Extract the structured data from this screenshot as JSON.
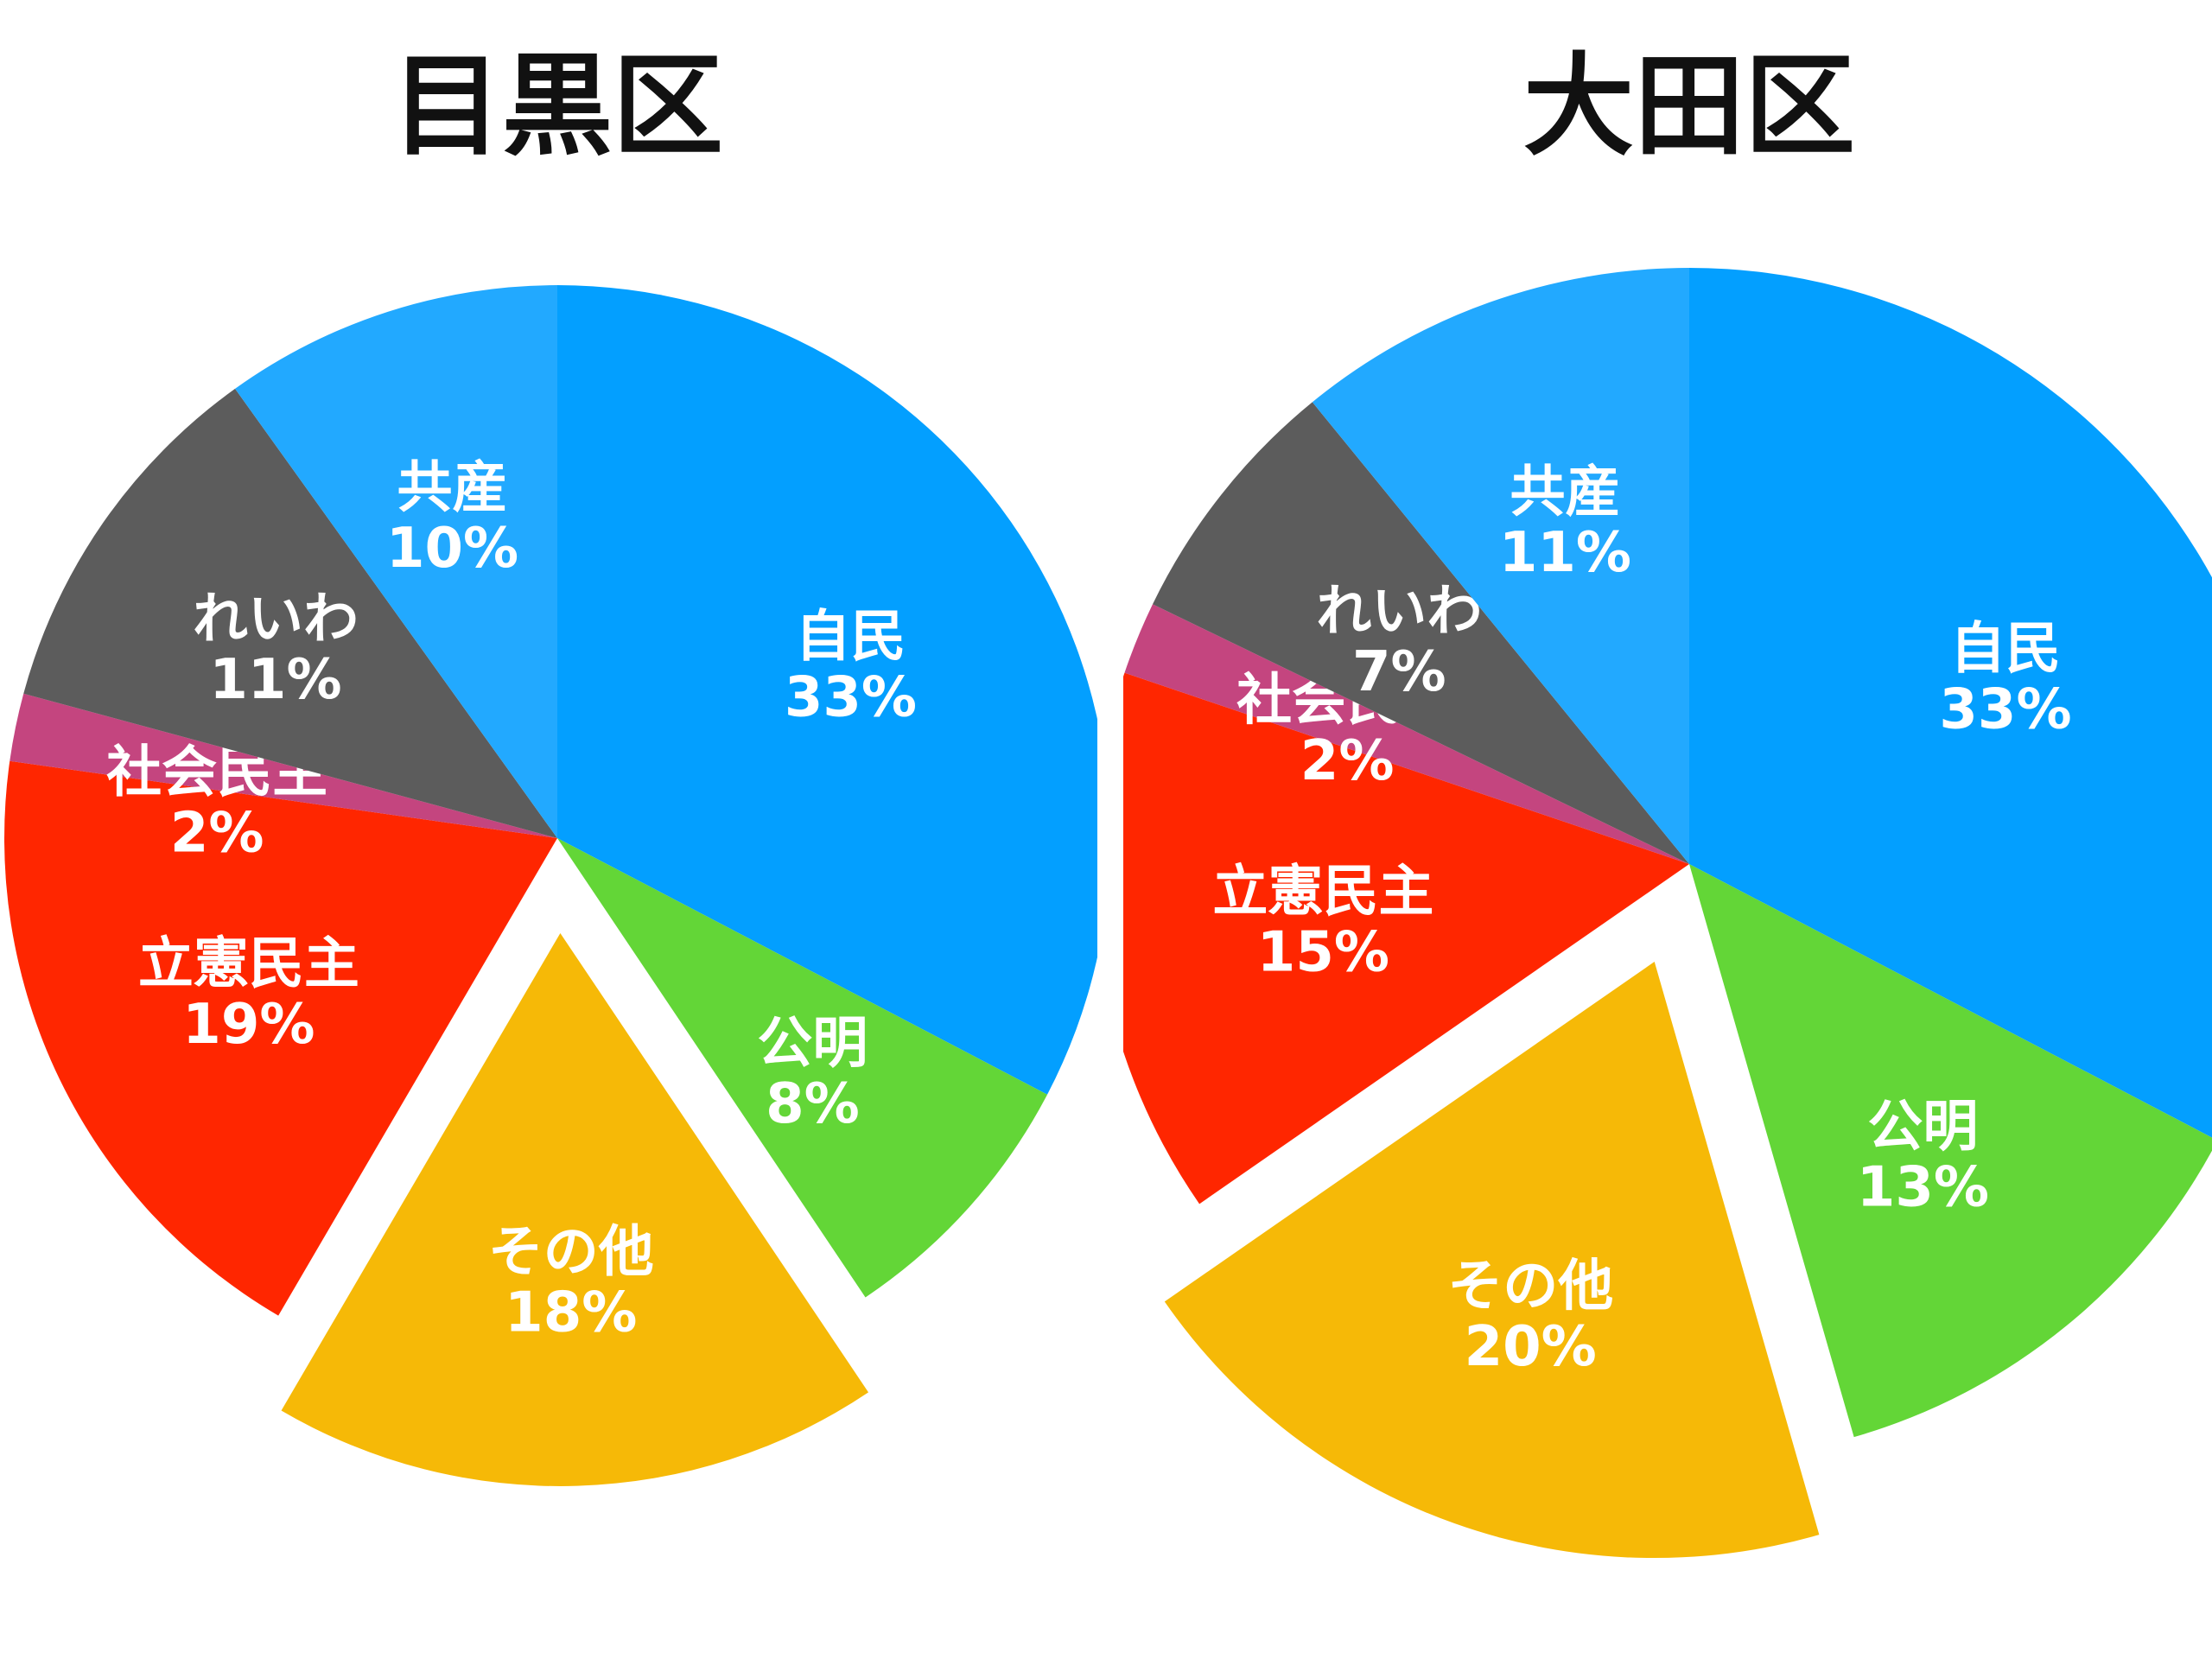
{
  "chart_data": [
    {
      "type": "pie",
      "title": "目黒区",
      "exploded": "その他",
      "start_angle_deg": -90,
      "slices": [
        {
          "name": "自民",
          "value": 33,
          "label": "33%",
          "color": "#039FFF"
        },
        {
          "name": "公明",
          "value": 8,
          "label": "8%",
          "color": "#63D637"
        },
        {
          "name": "その他",
          "value": 18,
          "label": "18%",
          "color": "#F6B907"
        },
        {
          "name": "立憲民主",
          "value": 19,
          "label": "19%",
          "color": "#FF2600"
        },
        {
          "name": "社会民主",
          "value": 2,
          "label": "2%",
          "color": "#C4457F"
        },
        {
          "name": "れいわ",
          "value": 11,
          "label": "11%",
          "color": "#5C5C5C"
        },
        {
          "name": "共産",
          "value": 10,
          "label": "10%",
          "color": "#22A9FF"
        }
      ]
    },
    {
      "type": "pie",
      "title": "大田区",
      "exploded": "その他",
      "start_angle_deg": -90,
      "slices": [
        {
          "name": "自民",
          "value": 33,
          "label": "33%",
          "color": "#039FFF"
        },
        {
          "name": "公明",
          "value": 13,
          "label": "13%",
          "color": "#63D637"
        },
        {
          "name": "その他",
          "value": 20,
          "label": "20%",
          "color": "#F6B907"
        },
        {
          "name": "立憲民主",
          "value": 15,
          "label": "15%",
          "color": "#FF2600"
        },
        {
          "name": "社会民主",
          "value": 2,
          "label": "2%",
          "color": "#C4457F"
        },
        {
          "name": "れいわ",
          "value": 7,
          "label": "7%",
          "color": "#5C5C5C"
        },
        {
          "name": "共産",
          "value": 11,
          "label": "11%",
          "color": "#22A9FF"
        }
      ]
    }
  ]
}
